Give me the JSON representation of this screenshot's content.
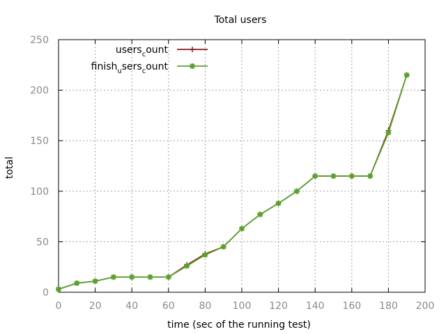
{
  "chart_data": {
    "type": "line",
    "title": "Total users",
    "xlabel": "time (sec of the running test)",
    "ylabel": "total",
    "xlim": [
      0,
      200
    ],
    "ylim": [
      0,
      250
    ],
    "xticks": [
      0,
      20,
      40,
      60,
      80,
      100,
      120,
      140,
      160,
      180,
      200
    ],
    "yticks": [
      0,
      50,
      100,
      150,
      200,
      250
    ],
    "grid": true,
    "legend_position": "top-left",
    "x": [
      0,
      10,
      20,
      30,
      40,
      50,
      60,
      70,
      80,
      90,
      100,
      110,
      120,
      130,
      140,
      150,
      160,
      170,
      180,
      190
    ],
    "series": [
      {
        "name": "users_count",
        "legend_main": "users",
        "legend_sub": "c",
        "legend_tail": "ount",
        "color": "#8b1a1a",
        "marker": "plus",
        "values": [
          3,
          9,
          11,
          15,
          15,
          15,
          15,
          27,
          38,
          45,
          63,
          77,
          88,
          100,
          115,
          115,
          115,
          115,
          160,
          215
        ]
      },
      {
        "name": "finish_users_count",
        "legend_main": "finish",
        "legend_sub": "u",
        "legend_tail": "sers",
        "legend_sub2": "c",
        "legend_tail2": "ount",
        "color": "#5aa02c",
        "marker": "star",
        "values": [
          3,
          9,
          11,
          15,
          15,
          15,
          15,
          26,
          37,
          45,
          63,
          77,
          88,
          100,
          115,
          115,
          115,
          115,
          158,
          215
        ]
      }
    ]
  }
}
